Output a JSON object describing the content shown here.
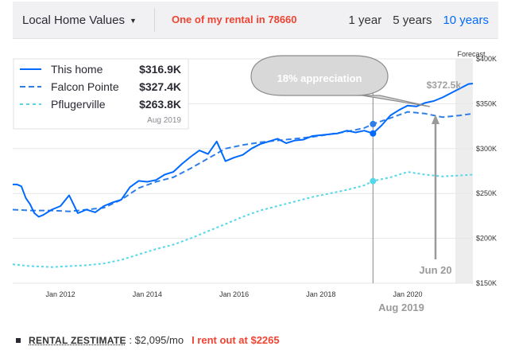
{
  "header": {
    "region_label": "Local Home Values",
    "note": "One of my rental in 78660",
    "ranges": [
      "1 year",
      "5 years",
      "10 years"
    ],
    "active_range": "10 years"
  },
  "footer": {
    "label": "RENTAL ZESTIMATE",
    "separator": " : ",
    "value": "$2,095/mo",
    "note": "I rent out at $2265"
  },
  "chart_data": {
    "type": "line",
    "ylim": [
      150000,
      400000
    ],
    "y_ticks": [
      150000,
      200000,
      250000,
      300000,
      350000,
      400000
    ],
    "y_tick_labels": [
      "$150K",
      "$200K",
      "$250K",
      "$300K",
      "$350K",
      "$400K"
    ],
    "x_ticks": [
      2012,
      2014,
      2016,
      2018,
      2020
    ],
    "x_tick_labels": [
      "Jan 2012",
      "Jan 2014",
      "Jan 2016",
      "Jan 2018",
      "Jan 2020"
    ],
    "forecast_label": "Forecast",
    "grid": true,
    "legend_position": "top-left",
    "legend_date": "Aug 2019",
    "series": [
      {
        "name": "This home",
        "legend_value": "$316.9K",
        "color": "#006aff",
        "style": "solid",
        "x": [
          2010.9,
          2011.0,
          2011.1,
          2011.2,
          2011.3,
          2011.4,
          2011.5,
          2011.6,
          2011.8,
          2012.0,
          2012.2,
          2012.4,
          2012.6,
          2012.8,
          2013.0,
          2013.2,
          2013.4,
          2013.6,
          2013.8,
          2014.0,
          2014.2,
          2014.4,
          2014.6,
          2014.8,
          2015.0,
          2015.2,
          2015.4,
          2015.6,
          2015.8,
          2016.0,
          2016.2,
          2016.4,
          2016.6,
          2016.8,
          2017.0,
          2017.2,
          2017.4,
          2017.6,
          2017.8,
          2018.0,
          2018.2,
          2018.4,
          2018.6,
          2018.8,
          2019.0,
          2019.2,
          2019.4,
          2019.6,
          2019.8,
          2020.0,
          2020.2,
          2020.4,
          2020.6,
          2020.8,
          2021.0,
          2021.2,
          2021.4,
          2021.5
        ],
        "y": [
          260000,
          260000,
          258000,
          245000,
          238000,
          228000,
          224000,
          226000,
          232000,
          236000,
          248000,
          228000,
          232000,
          229000,
          236000,
          240000,
          243000,
          257000,
          264000,
          263000,
          265000,
          271000,
          274000,
          283000,
          291000,
          298000,
          294000,
          308000,
          286000,
          290000,
          293000,
          300000,
          305000,
          308000,
          311000,
          306000,
          309000,
          310000,
          314000,
          315000,
          316000,
          317000,
          320000,
          318000,
          320000,
          316900,
          326000,
          337000,
          343000,
          348000,
          347000,
          351000,
          353000,
          357000,
          362000,
          367000,
          372000,
          372500
        ]
      },
      {
        "name": "Falcon Pointe",
        "legend_value": "$327.4K",
        "color": "#2f7ee8",
        "style": "dashed",
        "x": [
          2010.9,
          2011.3,
          2011.8,
          2012.2,
          2012.6,
          2013.0,
          2013.4,
          2013.8,
          2014.2,
          2014.6,
          2015.0,
          2015.4,
          2015.8,
          2016.2,
          2016.6,
          2017.0,
          2017.4,
          2017.8,
          2018.2,
          2018.6,
          2019.0,
          2019.2,
          2019.6,
          2020.0,
          2020.4,
          2020.8,
          2021.2,
          2021.5
        ],
        "y": [
          232000,
          231000,
          231000,
          230000,
          232000,
          234000,
          243000,
          256000,
          263000,
          268000,
          278000,
          289000,
          300000,
          304000,
          307000,
          309000,
          311000,
          313000,
          316000,
          319000,
          323000,
          327400,
          334000,
          341000,
          339000,
          335000,
          337000,
          339000
        ]
      },
      {
        "name": "Pflugerville",
        "legend_value": "$263.8K",
        "color": "#57d7ea",
        "style": "dotted",
        "x": [
          2010.9,
          2011.3,
          2011.8,
          2012.2,
          2012.6,
          2013.0,
          2013.4,
          2013.8,
          2014.2,
          2014.6,
          2015.0,
          2015.4,
          2015.8,
          2016.2,
          2016.6,
          2017.0,
          2017.4,
          2017.8,
          2018.2,
          2018.6,
          2019.0,
          2019.2,
          2019.6,
          2020.0,
          2020.4,
          2020.8,
          2021.2,
          2021.5
        ],
        "y": [
          171000,
          169000,
          168000,
          169000,
          170000,
          172000,
          176000,
          182000,
          188000,
          193000,
          200000,
          208000,
          216000,
          224000,
          231000,
          236000,
          241000,
          246000,
          250000,
          254000,
          259000,
          263800,
          268000,
          274000,
          271000,
          269000,
          270000,
          271000
        ]
      }
    ],
    "annotations": {
      "bubble": "18% appreciation",
      "forecast_value": "$372.5k",
      "arrow_month": "Jun 20",
      "current_date": "Aug 2019"
    }
  }
}
